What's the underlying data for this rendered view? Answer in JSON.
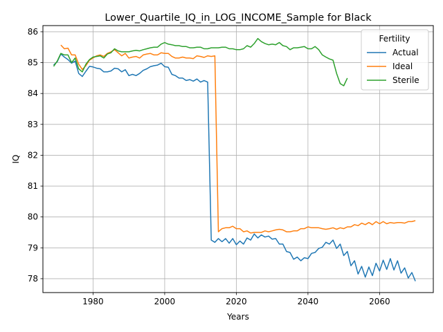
{
  "chart_data": {
    "type": "line",
    "title": "Lower_Quartile_IQ_in_LOG_INCOME_Sample for Black",
    "xlabel": "Years",
    "ylabel": "IQ",
    "xlim": [
      1966,
      2075
    ],
    "ylim": [
      77.55,
      86.2
    ],
    "xticks": [
      1980,
      2000,
      2020,
      2040,
      2060
    ],
    "yticks": [
      78,
      79,
      80,
      81,
      82,
      83,
      84,
      85,
      86
    ],
    "grid": true,
    "legend": {
      "title": "Fertility",
      "position": "top-right"
    },
    "series": [
      {
        "name": "Actual",
        "color": "#1f77b4",
        "x": [
          1969,
          1970,
          1971,
          1972,
          1973,
          1974,
          1975,
          1976,
          1977,
          1978,
          1979,
          1980,
          1981,
          1982,
          1983,
          1984,
          1985,
          1986,
          1987,
          1988,
          1989,
          1990,
          1991,
          1992,
          1993,
          1994,
          1995,
          1996,
          1997,
          1998,
          1999,
          2000,
          2001,
          2002,
          2003,
          2004,
          2005,
          2006,
          2007,
          2008,
          2009,
          2010,
          2011,
          2012,
          2013,
          2014,
          2015,
          2016,
          2017,
          2018,
          2019,
          2020,
          2021,
          2022,
          2023,
          2024,
          2025,
          2026,
          2027,
          2028,
          2029,
          2030,
          2031,
          2032,
          2033,
          2034,
          2035,
          2036,
          2037,
          2038,
          2039,
          2040,
          2041,
          2042,
          2043,
          2044,
          2045,
          2046,
          2047,
          2048,
          2049,
          2050,
          2051,
          2052,
          2053,
          2054,
          2055,
          2056,
          2057,
          2058,
          2059,
          2060,
          2061,
          2062,
          2063,
          2064,
          2065,
          2066,
          2067,
          2068,
          2069,
          2070
        ],
        "values": [
          84.92,
          85.03,
          85.28,
          85.18,
          85.1,
          84.98,
          85.05,
          84.65,
          84.55,
          84.72,
          84.88,
          84.86,
          84.82,
          84.8,
          84.7,
          84.7,
          84.73,
          84.82,
          84.8,
          84.7,
          84.77,
          84.58,
          84.62,
          84.58,
          84.65,
          84.75,
          84.8,
          84.87,
          84.9,
          84.92,
          84.98,
          84.87,
          84.85,
          84.62,
          84.58,
          84.5,
          84.5,
          84.42,
          84.45,
          84.4,
          84.47,
          84.37,
          84.42,
          84.37,
          79.25,
          79.18,
          79.3,
          79.2,
          79.3,
          79.15,
          79.3,
          79.1,
          79.22,
          79.12,
          79.32,
          79.25,
          79.45,
          79.32,
          79.42,
          79.35,
          79.38,
          79.28,
          79.3,
          79.12,
          79.12,
          78.88,
          78.85,
          78.63,
          78.7,
          78.58,
          78.68,
          78.65,
          78.82,
          78.85,
          78.98,
          79.02,
          79.18,
          79.12,
          79.25,
          78.98,
          79.12,
          78.75,
          78.88,
          78.42,
          78.58,
          78.15,
          78.4,
          78.05,
          78.38,
          78.1,
          78.5,
          78.25,
          78.6,
          78.3,
          78.65,
          78.28,
          78.58,
          78.18,
          78.35,
          78.02,
          78.2,
          77.92
        ]
      },
      {
        "name": "Ideal",
        "color": "#ff7f0e",
        "x": [
          1971,
          1972,
          1973,
          1974,
          1975,
          1976,
          1977,
          1978,
          1979,
          1980,
          1981,
          1982,
          1983,
          1984,
          1985,
          1986,
          1987,
          1988,
          1989,
          1990,
          1991,
          1992,
          1993,
          1994,
          1995,
          1996,
          1997,
          1998,
          1999,
          2000,
          2001,
          2002,
          2003,
          2004,
          2005,
          2006,
          2007,
          2008,
          2009,
          2010,
          2011,
          2012,
          2013,
          2014,
          2015,
          2016,
          2017,
          2018,
          2019,
          2020,
          2021,
          2022,
          2023,
          2024,
          2025,
          2026,
          2027,
          2028,
          2029,
          2030,
          2031,
          2032,
          2033,
          2034,
          2035,
          2036,
          2037,
          2038,
          2039,
          2040,
          2041,
          2042,
          2043,
          2044,
          2045,
          2046,
          2047,
          2048,
          2049,
          2050,
          2051,
          2052,
          2053,
          2054,
          2055,
          2056,
          2057,
          2058,
          2059,
          2060,
          2061,
          2062,
          2063,
          2064,
          2065,
          2066,
          2067,
          2068,
          2069,
          2070
        ],
        "values": [
          85.57,
          85.45,
          85.47,
          85.25,
          85.25,
          84.95,
          84.78,
          84.9,
          85.08,
          85.15,
          85.22,
          85.25,
          85.2,
          85.3,
          85.35,
          85.42,
          85.32,
          85.22,
          85.3,
          85.15,
          85.18,
          85.2,
          85.15,
          85.25,
          85.28,
          85.3,
          85.25,
          85.25,
          85.32,
          85.3,
          85.3,
          85.2,
          85.15,
          85.15,
          85.18,
          85.15,
          85.15,
          85.13,
          85.22,
          85.2,
          85.17,
          85.22,
          85.2,
          85.22,
          79.52,
          79.62,
          79.65,
          79.65,
          79.7,
          79.62,
          79.62,
          79.52,
          79.55,
          79.48,
          79.5,
          79.5,
          79.5,
          79.55,
          79.52,
          79.55,
          79.58,
          79.6,
          79.58,
          79.52,
          79.52,
          79.55,
          79.55,
          79.62,
          79.62,
          79.68,
          79.65,
          79.65,
          79.65,
          79.62,
          79.6,
          79.62,
          79.65,
          79.6,
          79.65,
          79.62,
          79.68,
          79.68,
          79.75,
          79.72,
          79.8,
          79.75,
          79.82,
          79.75,
          79.85,
          79.78,
          79.85,
          79.78,
          79.82,
          79.8,
          79.82,
          79.82,
          79.8,
          79.85,
          79.85,
          79.88
        ]
      },
      {
        "name": "Sterile",
        "color": "#2ca02c",
        "x": [
          1969,
          1970,
          1971,
          1972,
          1973,
          1974,
          1975,
          1976,
          1977,
          1978,
          1979,
          1980,
          1981,
          1982,
          1983,
          1984,
          1985,
          1986,
          1987,
          1988,
          1989,
          1990,
          1991,
          1992,
          1993,
          1994,
          1995,
          1996,
          1997,
          1998,
          1999,
          2000,
          2001,
          2002,
          2003,
          2004,
          2005,
          2006,
          2007,
          2008,
          2009,
          2010,
          2011,
          2012,
          2013,
          2014,
          2015,
          2016,
          2017,
          2018,
          2019,
          2020,
          2021,
          2022,
          2023,
          2024,
          2025,
          2026,
          2027,
          2028,
          2029,
          2030,
          2031,
          2032,
          2033,
          2034,
          2035,
          2036,
          2037,
          2038,
          2039,
          2040,
          2041,
          2042,
          2043,
          2044,
          2045,
          2046,
          2047,
          2048,
          2049,
          2050,
          2051
        ],
        "values": [
          84.88,
          85.05,
          85.3,
          85.25,
          85.25,
          85.0,
          85.15,
          84.8,
          84.7,
          84.95,
          85.1,
          85.18,
          85.2,
          85.22,
          85.15,
          85.28,
          85.32,
          85.45,
          85.38,
          85.35,
          85.35,
          85.35,
          85.38,
          85.4,
          85.38,
          85.42,
          85.45,
          85.48,
          85.5,
          85.5,
          85.6,
          85.65,
          85.6,
          85.58,
          85.55,
          85.55,
          85.52,
          85.52,
          85.48,
          85.48,
          85.5,
          85.5,
          85.45,
          85.45,
          85.48,
          85.48,
          85.48,
          85.5,
          85.5,
          85.45,
          85.45,
          85.42,
          85.42,
          85.45,
          85.55,
          85.5,
          85.62,
          85.78,
          85.68,
          85.62,
          85.58,
          85.6,
          85.58,
          85.65,
          85.55,
          85.52,
          85.42,
          85.48,
          85.48,
          85.5,
          85.52,
          85.45,
          85.45,
          85.52,
          85.42,
          85.25,
          85.18,
          85.12,
          85.08,
          84.65,
          84.32,
          84.25,
          84.5
        ]
      }
    ]
  }
}
